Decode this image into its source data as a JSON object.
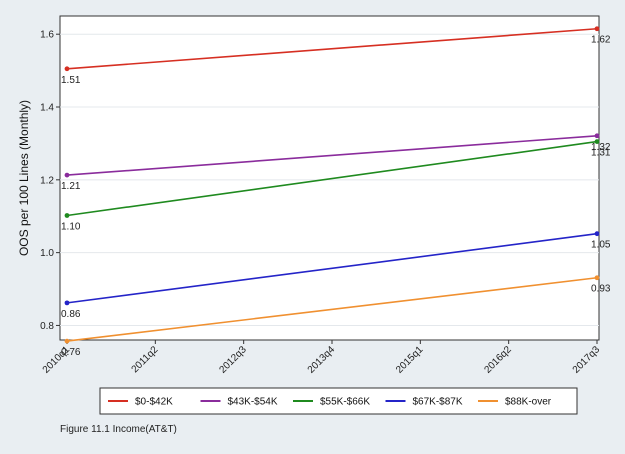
{
  "chart_data": {
    "type": "line",
    "title": "",
    "xlabel": "",
    "ylabel": "OOS per 100 Lines (Monthly)",
    "categories": [
      "2010q1",
      "2011q2",
      "2012q3",
      "2013q4",
      "2015q1",
      "2016q2",
      "2017q3"
    ],
    "x_range": [
      0,
      6
    ],
    "ylim": [
      0.76,
      1.65
    ],
    "yticks": [
      "0.8",
      "1.0",
      "1.2",
      "1.4",
      "1.6"
    ],
    "ytick_values": [
      0.8,
      1.0,
      1.2,
      1.4,
      1.6
    ],
    "grid": true,
    "legend_position": "bottom",
    "series": [
      {
        "name": "$0-$42K",
        "color": "#d62f22",
        "x": [
          0,
          6
        ],
        "values": [
          1.505,
          1.615
        ],
        "labels": [
          "1.51",
          "1.62"
        ]
      },
      {
        "name": "$43K-$54K",
        "color": "#8a2c9c",
        "x": [
          0,
          6
        ],
        "values": [
          1.213,
          1.321
        ],
        "labels": [
          "1.21",
          "1.32"
        ]
      },
      {
        "name": "$55K-$66K",
        "color": "#1f8a1f",
        "x": [
          0,
          6
        ],
        "values": [
          1.102,
          1.305
        ],
        "labels": [
          "1.10",
          "1.31"
        ]
      },
      {
        "name": "$67K-$87K",
        "color": "#2424c8",
        "x": [
          0,
          6
        ],
        "values": [
          0.862,
          1.052
        ],
        "labels": [
          "0.86",
          "1.05"
        ]
      },
      {
        "name": "$88K-over",
        "color": "#f09030",
        "x": [
          0,
          6
        ],
        "values": [
          0.757,
          0.931
        ],
        "labels": [
          "0.76",
          "0.93"
        ]
      }
    ]
  },
  "caption": "Figure 11.1 Income(AT&T)"
}
